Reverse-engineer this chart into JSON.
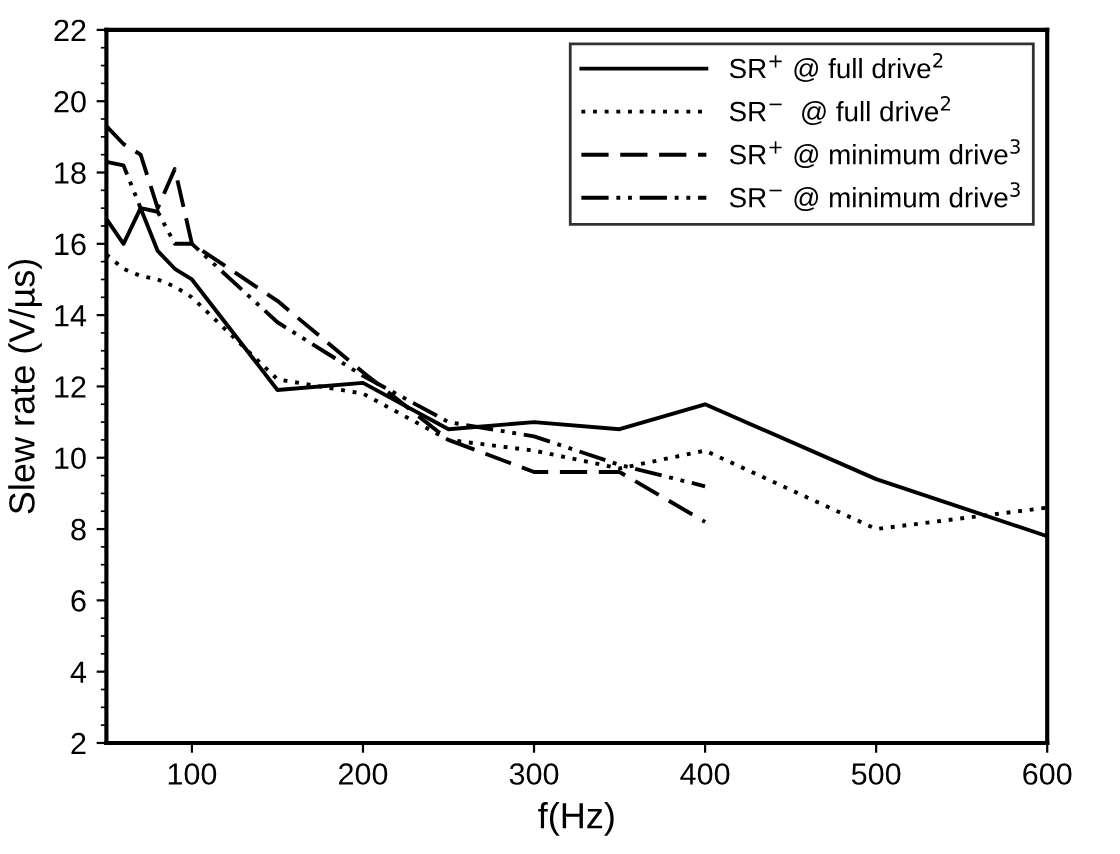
{
  "chart_data": {
    "type": "line",
    "xlabel": "f(Hz)",
    "ylabel": "Slew rate (V/µs)",
    "x": [
      50,
      60,
      70,
      80,
      90,
      100,
      150,
      200,
      250,
      300,
      350,
      400,
      500,
      600
    ],
    "series": [
      {
        "name": "SR$^{+}$ @ full drive$^{2}$",
        "color": "#000000",
        "line_style": "solid",
        "values": [
          16.7,
          16.0,
          17.0,
          15.8,
          15.3,
          15.0,
          11.9,
          12.1,
          10.8,
          11.0,
          10.8,
          11.5,
          9.4,
          7.8
        ]
      },
      {
        "name": "SR$^{−}$  @ full drive$^{2}$",
        "color": "#000000",
        "line_style": "dotted",
        "values": [
          15.7,
          15.3,
          15.1,
          15.0,
          14.8,
          14.5,
          12.2,
          11.8,
          10.5,
          10.2,
          9.7,
          10.2,
          8.0,
          8.6
        ]
      },
      {
        "name": "SR$^{+}$ @ minimum drive$^{3}$",
        "color": "#000000",
        "line_style": "dashed",
        "values": [
          19.3,
          18.8,
          18.5,
          17.0,
          18.1,
          16.0,
          14.4,
          12.4,
          10.5,
          9.6,
          9.6,
          8.2,
          null,
          null
        ]
      },
      {
        "name": "SR$^{−}$ @ minimum drive$^{3}$",
        "color": "#000000",
        "line_style": "dashdotdot",
        "values": [
          18.3,
          18.2,
          17.0,
          16.9,
          16.0,
          16.0,
          13.8,
          12.3,
          11.0,
          10.6,
          9.8,
          9.2,
          null,
          null
        ]
      }
    ],
    "xlim": [
      50,
      600
    ],
    "xticks": [
      100,
      200,
      300,
      400,
      500,
      600
    ],
    "ylim": [
      2,
      22
    ],
    "yticks": [
      2,
      4,
      6,
      8,
      10,
      12,
      14,
      16,
      18,
      20,
      22
    ],
    "grid": false,
    "legend": "top right",
    "marker": "none"
  }
}
